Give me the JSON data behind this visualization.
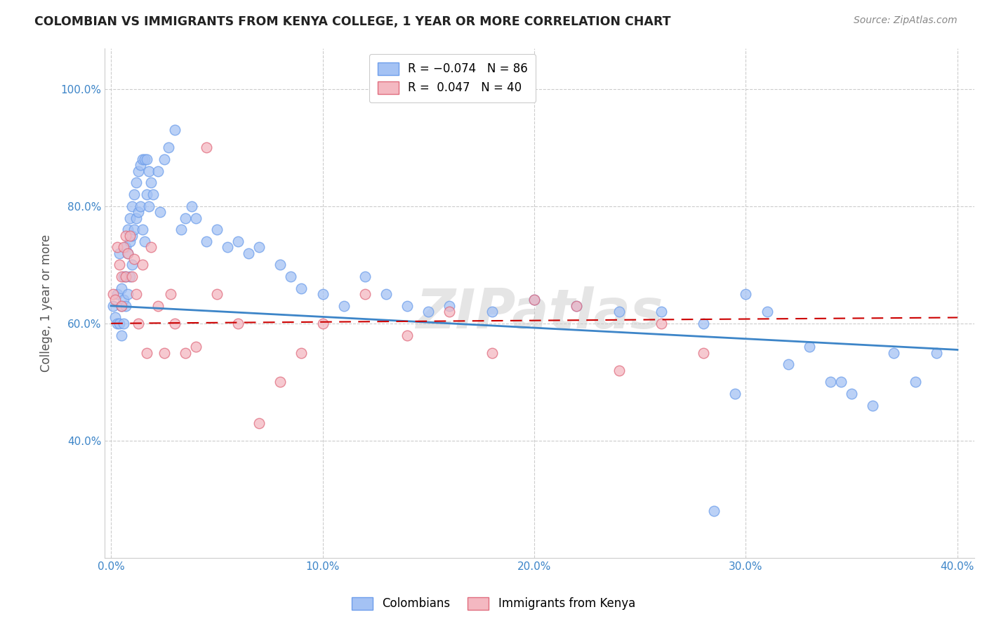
{
  "title": "COLOMBIAN VS IMMIGRANTS FROM KENYA COLLEGE, 1 YEAR OR MORE CORRELATION CHART",
  "source": "Source: ZipAtlas.com",
  "ylabel": "College, 1 year or more",
  "xlabel_colombians": "Colombians",
  "xlabel_kenya": "Immigrants from Kenya",
  "color_blue": "#a4c2f4",
  "color_pink": "#f4b8c1",
  "edge_blue": "#6d9eeb",
  "edge_pink": "#e06c7e",
  "line_blue_color": "#3d85c8",
  "line_pink_color": "#cc0000",
  "watermark": "ZIPatlas",
  "xlim": [
    0.0,
    0.4
  ],
  "ylim": [
    0.2,
    1.07
  ],
  "blue_x": [
    0.001,
    0.002,
    0.003,
    0.003,
    0.004,
    0.004,
    0.005,
    0.005,
    0.005,
    0.006,
    0.006,
    0.006,
    0.007,
    0.007,
    0.007,
    0.008,
    0.008,
    0.008,
    0.009,
    0.009,
    0.009,
    0.01,
    0.01,
    0.01,
    0.011,
    0.011,
    0.012,
    0.012,
    0.013,
    0.013,
    0.014,
    0.014,
    0.015,
    0.015,
    0.016,
    0.016,
    0.017,
    0.017,
    0.018,
    0.018,
    0.019,
    0.02,
    0.022,
    0.023,
    0.025,
    0.027,
    0.03,
    0.033,
    0.035,
    0.038,
    0.04,
    0.045,
    0.05,
    0.055,
    0.06,
    0.065,
    0.07,
    0.08,
    0.085,
    0.09,
    0.1,
    0.11,
    0.12,
    0.13,
    0.14,
    0.15,
    0.16,
    0.18,
    0.2,
    0.22,
    0.24,
    0.26,
    0.28,
    0.3,
    0.31,
    0.32,
    0.33,
    0.34,
    0.345,
    0.35,
    0.36,
    0.37,
    0.38,
    0.39,
    0.295,
    0.285
  ],
  "blue_y": [
    0.63,
    0.61,
    0.6,
    0.65,
    0.72,
    0.6,
    0.66,
    0.63,
    0.58,
    0.68,
    0.64,
    0.6,
    0.73,
    0.68,
    0.63,
    0.76,
    0.72,
    0.65,
    0.78,
    0.74,
    0.68,
    0.8,
    0.75,
    0.7,
    0.82,
    0.76,
    0.84,
    0.78,
    0.86,
    0.79,
    0.87,
    0.8,
    0.88,
    0.76,
    0.88,
    0.74,
    0.88,
    0.82,
    0.86,
    0.8,
    0.84,
    0.82,
    0.86,
    0.79,
    0.88,
    0.9,
    0.93,
    0.76,
    0.78,
    0.8,
    0.78,
    0.74,
    0.76,
    0.73,
    0.74,
    0.72,
    0.73,
    0.7,
    0.68,
    0.66,
    0.65,
    0.63,
    0.68,
    0.65,
    0.63,
    0.62,
    0.63,
    0.62,
    0.64,
    0.63,
    0.62,
    0.62,
    0.6,
    0.65,
    0.62,
    0.53,
    0.56,
    0.5,
    0.5,
    0.48,
    0.46,
    0.55,
    0.5,
    0.55,
    0.48,
    0.28
  ],
  "pink_x": [
    0.001,
    0.002,
    0.003,
    0.004,
    0.005,
    0.005,
    0.006,
    0.007,
    0.007,
    0.008,
    0.009,
    0.01,
    0.011,
    0.012,
    0.013,
    0.015,
    0.017,
    0.019,
    0.022,
    0.025,
    0.028,
    0.03,
    0.035,
    0.04,
    0.045,
    0.05,
    0.06,
    0.07,
    0.08,
    0.09,
    0.1,
    0.12,
    0.14,
    0.16,
    0.18,
    0.2,
    0.22,
    0.24,
    0.26,
    0.28
  ],
  "pink_y": [
    0.65,
    0.64,
    0.73,
    0.7,
    0.68,
    0.63,
    0.73,
    0.75,
    0.68,
    0.72,
    0.75,
    0.68,
    0.71,
    0.65,
    0.6,
    0.7,
    0.55,
    0.73,
    0.63,
    0.55,
    0.65,
    0.6,
    0.55,
    0.56,
    0.9,
    0.65,
    0.6,
    0.43,
    0.5,
    0.55,
    0.6,
    0.65,
    0.58,
    0.62,
    0.55,
    0.64,
    0.63,
    0.52,
    0.6,
    0.55
  ],
  "blue_trend_x": [
    0.0,
    0.4
  ],
  "blue_trend_y": [
    0.63,
    0.555
  ],
  "pink_trend_x": [
    0.0,
    0.4
  ],
  "pink_trend_y": [
    0.6,
    0.61
  ]
}
